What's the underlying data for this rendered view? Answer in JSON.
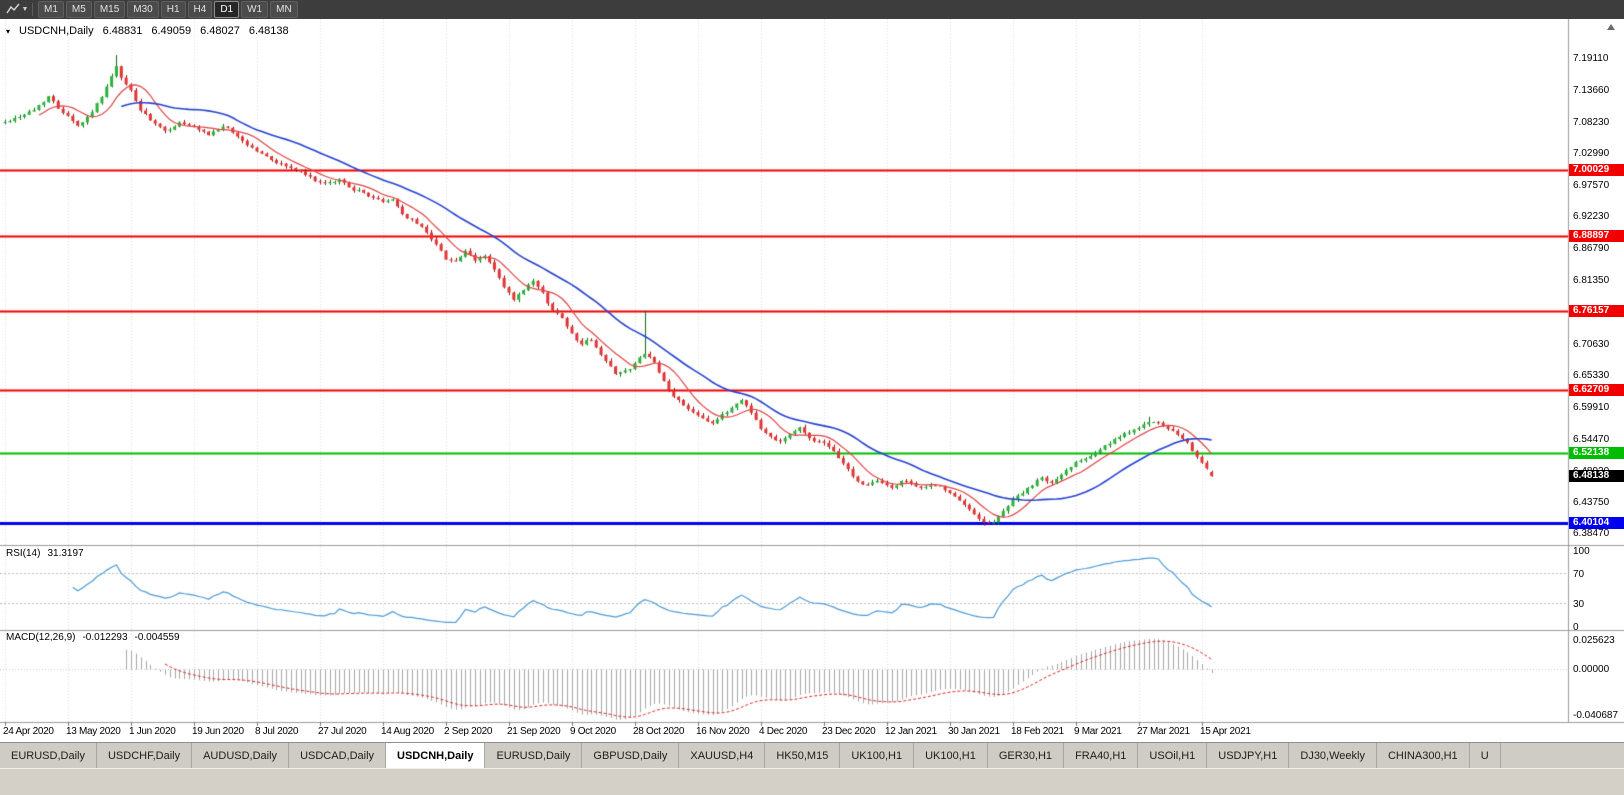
{
  "window": {
    "title": "USDCNH,Daily"
  },
  "toolbar": {
    "tool_icon": "chart-line-tool",
    "timeframes": [
      "M1",
      "M5",
      "M15",
      "M30",
      "H1",
      "H4",
      "D1",
      "W1",
      "MN"
    ],
    "active_timeframe": "D1"
  },
  "chart": {
    "header": {
      "symbol": "USDCNH,Daily",
      "open": "6.48831",
      "high": "6.49059",
      "low": "6.48027",
      "close": "6.48138"
    }
  },
  "chart_data": {
    "type": "candlestick",
    "symbol": "USDCNH",
    "timeframe": "Daily",
    "bars": 250,
    "noise_seed": 42,
    "x_tick_interval": 13,
    "x_tick_labels": [
      "24 Apr 2020",
      "13 May 2020",
      "1 Jun 2020",
      "19 Jun 2020",
      "8 Jul 2020",
      "27 Jul 2020",
      "14 Aug 2020",
      "2 Sep 2020",
      "21 Sep 2020",
      "9 Oct 2020",
      "28 Oct 2020",
      "16 Nov 2020",
      "4 Dec 2020",
      "23 Dec 2020",
      "12 Jan 2021",
      "30 Jan 2021",
      "18 Feb 2021",
      "9 Mar 2021",
      "27 Mar 2021",
      "15 Apr 2021"
    ],
    "y_axis_ticks": [
      "7.19110",
      "7.13660",
      "7.08230",
      "7.02990",
      "6.97570",
      "6.92230",
      "6.86790",
      "6.81350",
      "6.76030",
      "6.70630",
      "6.65330",
      "6.59910",
      "6.54470",
      "6.48920",
      "6.43750",
      "6.38470"
    ],
    "price_range": {
      "top": 7.2572,
      "bottom": 6.3644
    },
    "hlines": [
      {
        "value": 7.00029,
        "label": "7.00029",
        "color": "#f20000",
        "width": 2
      },
      {
        "value": 6.88897,
        "label": "6.88897",
        "color": "#f20000",
        "width": 2
      },
      {
        "value": 6.76157,
        "label": "6.76157",
        "color": "#f20000",
        "width": 2
      },
      {
        "value": 6.62709,
        "label": "6.62709",
        "color": "#f20000",
        "width": 2
      },
      {
        "value": 6.52138,
        "label": "6.52138",
        "color": "#00bd00",
        "width": 2
      },
      {
        "value": 6.40104,
        "label": "6.40104",
        "color": "#0000f0",
        "width": 3
      }
    ],
    "current_price": {
      "value": 6.48138,
      "label": "6.48138",
      "color": "#000000"
    },
    "price_waypoints": [
      [
        0,
        7.082
      ],
      [
        3,
        7.092
      ],
      [
        6,
        7.103
      ],
      [
        9,
        7.126
      ],
      [
        11,
        7.106
      ],
      [
        13,
        7.094
      ],
      [
        15,
        7.076
      ],
      [
        17,
        7.09
      ],
      [
        19,
        7.112
      ],
      [
        21,
        7.142
      ],
      [
        23,
        7.176
      ],
      [
        24,
        7.156
      ],
      [
        26,
        7.136
      ],
      [
        28,
        7.102
      ],
      [
        30,
        7.085
      ],
      [
        33,
        7.066
      ],
      [
        36,
        7.081
      ],
      [
        39,
        7.072
      ],
      [
        42,
        7.06
      ],
      [
        45,
        7.076
      ],
      [
        48,
        7.058
      ],
      [
        50,
        7.044
      ],
      [
        53,
        7.028
      ],
      [
        56,
        7.014
      ],
      [
        60,
        7.001
      ],
      [
        63,
        6.988
      ],
      [
        66,
        6.976
      ],
      [
        69,
        6.984
      ],
      [
        72,
        6.968
      ],
      [
        75,
        6.958
      ],
      [
        78,
        6.946
      ],
      [
        80,
        6.952
      ],
      [
        82,
        6.926
      ],
      [
        85,
        6.91
      ],
      [
        87,
        6.896
      ],
      [
        89,
        6.874
      ],
      [
        91,
        6.851
      ],
      [
        93,
        6.846
      ],
      [
        95,
        6.862
      ],
      [
        97,
        6.847
      ],
      [
        99,
        6.856
      ],
      [
        101,
        6.832
      ],
      [
        103,
        6.801
      ],
      [
        105,
        6.781
      ],
      [
        107,
        6.796
      ],
      [
        109,
        6.812
      ],
      [
        111,
        6.791
      ],
      [
        113,
        6.762
      ],
      [
        115,
        6.752
      ],
      [
        117,
        6.722
      ],
      [
        119,
        6.706
      ],
      [
        121,
        6.714
      ],
      [
        123,
        6.686
      ],
      [
        126,
        6.657
      ],
      [
        129,
        6.662
      ],
      [
        132,
        6.691
      ],
      [
        134,
        6.672
      ],
      [
        137,
        6.626
      ],
      [
        140,
        6.601
      ],
      [
        143,
        6.586
      ],
      [
        146,
        6.571
      ],
      [
        149,
        6.591
      ],
      [
        152,
        6.611
      ],
      [
        154,
        6.591
      ],
      [
        156,
        6.561
      ],
      [
        158,
        6.548
      ],
      [
        160,
        6.541
      ],
      [
        162,
        6.553
      ],
      [
        164,
        6.563
      ],
      [
        166,
        6.546
      ],
      [
        169,
        6.536
      ],
      [
        172,
        6.514
      ],
      [
        175,
        6.481
      ],
      [
        177,
        6.466
      ],
      [
        180,
        6.472
      ],
      [
        183,
        6.462
      ],
      [
        186,
        6.475
      ],
      [
        189,
        6.459
      ],
      [
        192,
        6.468
      ],
      [
        195,
        6.452
      ],
      [
        198,
        6.432
      ],
      [
        200,
        6.417
      ],
      [
        202,
        6.404
      ],
      [
        204,
        6.402
      ],
      [
        206,
        6.422
      ],
      [
        208,
        6.442
      ],
      [
        211,
        6.459
      ],
      [
        214,
        6.479
      ],
      [
        216,
        6.469
      ],
      [
        218,
        6.483
      ],
      [
        221,
        6.506
      ],
      [
        224,
        6.517
      ],
      [
        227,
        6.532
      ],
      [
        230,
        6.547
      ],
      [
        233,
        6.562
      ],
      [
        236,
        6.572
      ],
      [
        238,
        6.57
      ],
      [
        240,
        6.562
      ],
      [
        242,
        6.551
      ],
      [
        244,
        6.536
      ],
      [
        246,
        6.516
      ],
      [
        248,
        6.492
      ],
      [
        249,
        6.48138
      ]
    ],
    "spikes": [
      {
        "i": 23,
        "high": 7.196
      },
      {
        "i": 132,
        "high": 6.762
      },
      {
        "i": 202,
        "low": 6.397
      },
      {
        "i": 236,
        "high": 6.582
      }
    ],
    "candle_colors": {
      "up_fill": "#2bb23a",
      "up_edge": "#0d6e19",
      "down_fill": "#e23434",
      "down_edge": "#8c1616"
    },
    "moving_averages": [
      {
        "period": 8,
        "type": "sma",
        "color": "#e04545"
      },
      {
        "period": 25,
        "type": "sma",
        "color": "#2743cf"
      }
    ],
    "rsi": {
      "label": "RSI(14)",
      "period": 14,
      "value": "31.3197",
      "color": "#4f9bd6",
      "levels": [
        70,
        30
      ],
      "axis_ticks": [
        100,
        70,
        30,
        0
      ]
    },
    "macd": {
      "label": "MACD(12,26,9)",
      "fast": 12,
      "slow": 26,
      "signal": 9,
      "value_main": "-0.012293",
      "value_signal": "-0.004559",
      "hist_color": "#a6a6a6",
      "signal_color": "#d92b2b",
      "range": {
        "top": 0.0305,
        "bottom": -0.0439
      },
      "axis_ticks": [
        {
          "label": "0.025623",
          "value": 0.025623
        },
        {
          "label": "0.00000",
          "value": 0
        },
        {
          "label": "-0.040687",
          "value": -0.040687
        }
      ]
    }
  },
  "tabs": {
    "items": [
      "EURUSD,Daily",
      "USDCHF,Daily",
      "AUDUSD,Daily",
      "USDCAD,Daily",
      "USDCNH,Daily",
      "EURUSD,Daily",
      "GBPUSD,Daily",
      "XAUUSD,H4",
      "HK50,M15",
      "UK100,H1",
      "UK100,H1",
      "GER30,H1",
      "FRA40,H1",
      "USOil,H1",
      "USDJPY,H1",
      "DJ30,Weekly",
      "CHINA300,H1",
      "U"
    ],
    "active_index": 4
  }
}
